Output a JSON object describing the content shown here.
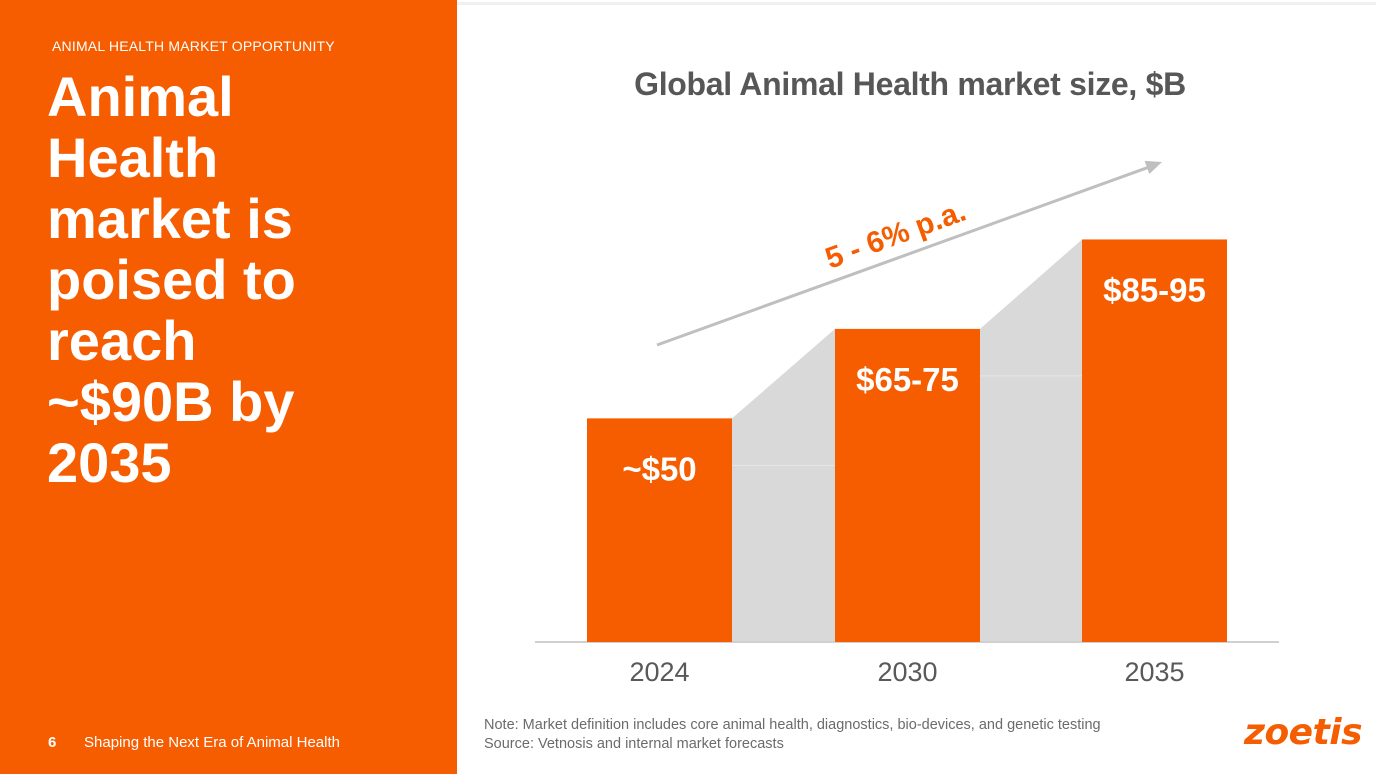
{
  "slide": {
    "section_label": "ANIMAL HEALTH MARKET OPPORTUNITY",
    "headline": "Animal Health market is poised to reach ~$90B by 2035",
    "page_number": "6",
    "footer_text": "Shaping the Next Era of Animal Health",
    "note": "Note: Market definition includes core animal health, diagnostics, bio-devices, and genetic testing",
    "source": "Source: Vetnosis and internal market forecasts",
    "logo_text": "zoetis"
  },
  "colors": {
    "accent": "#F55D00",
    "connector": "#D9D9D9",
    "arrow": "#BFBFBF",
    "axis_text": "#595959",
    "title_text": "#575757"
  },
  "chart_data": {
    "type": "bar",
    "title": "Global Animal Health market size, $B",
    "categories": [
      "2024",
      "2030",
      "2035"
    ],
    "values": [
      50,
      70,
      90
    ],
    "data_labels": [
      "~$50",
      "$65-75",
      "$85-95"
    ],
    "ylim": [
      0,
      110
    ],
    "xlabel": "",
    "ylabel": "",
    "grid": false,
    "annotation": "5 - 6% p.a."
  }
}
